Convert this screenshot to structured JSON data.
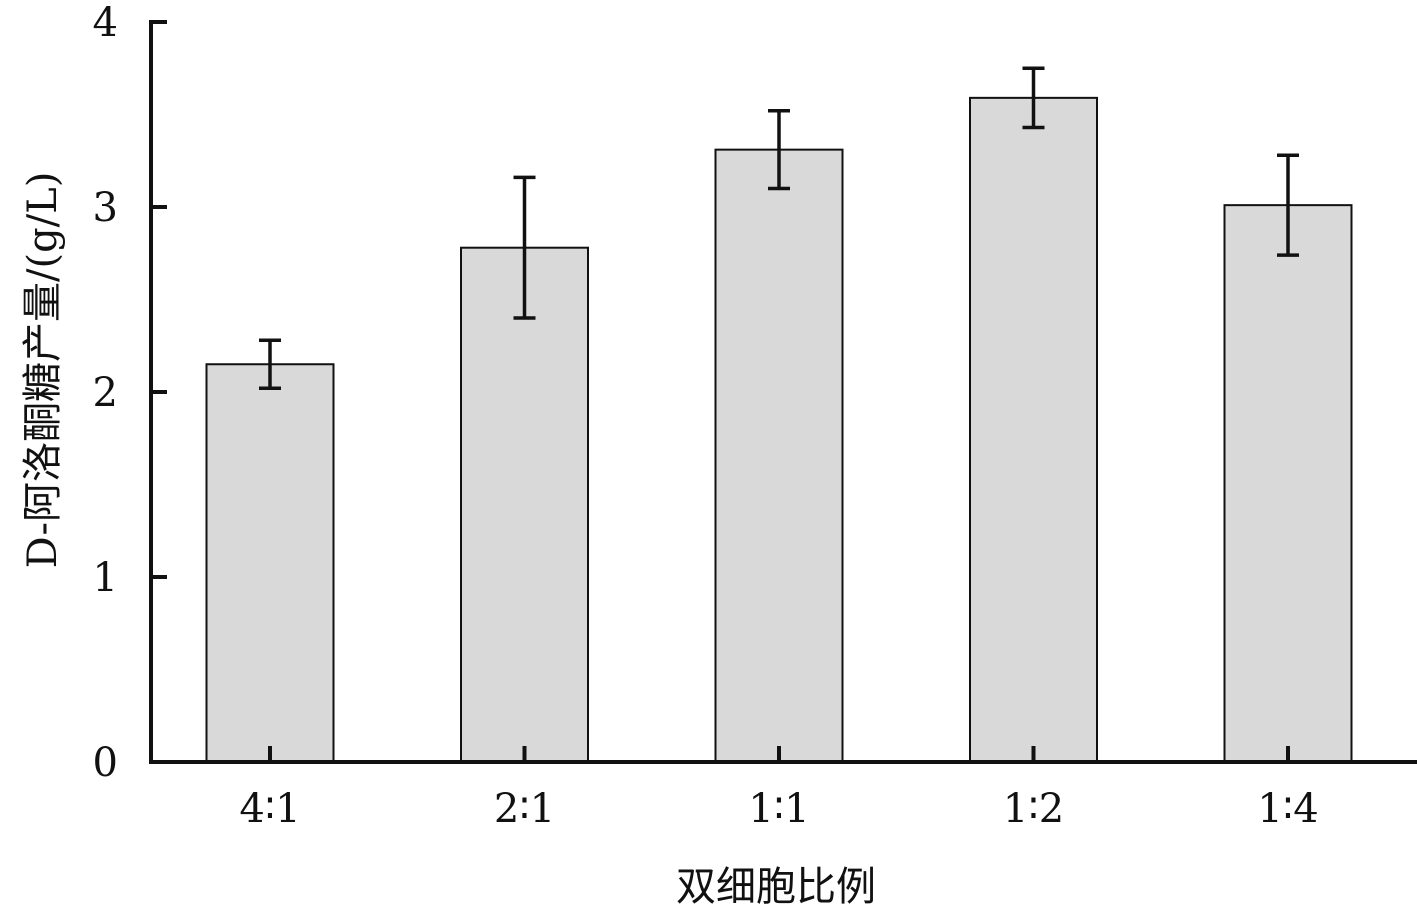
{
  "chart_data": {
    "type": "bar",
    "title": "",
    "xlabel": "双细胞比例",
    "ylabel": "D-阿洛酮糖产量/(g/L)",
    "ylim": [
      0,
      4
    ],
    "yticks": [
      "0",
      "1",
      "2",
      "3",
      "4"
    ],
    "categories": [
      "4∶1",
      "2∶1",
      "1∶1",
      "1∶2",
      "1∶4"
    ],
    "values": [
      2.15,
      2.78,
      3.31,
      3.59,
      3.01
    ],
    "errors": [
      0.13,
      0.38,
      0.21,
      0.16,
      0.27
    ],
    "grid": false,
    "bar_color": "#d9d9d9",
    "edge_color": "#111111"
  }
}
